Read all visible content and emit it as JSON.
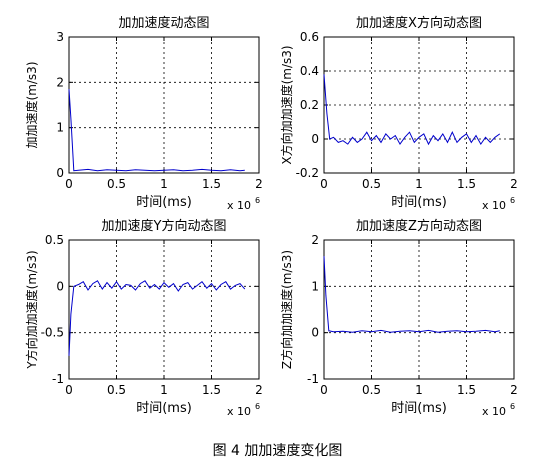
{
  "figure_caption": "图 4  加加速度变化图",
  "colors": {
    "line": "#0000cc",
    "axis": "#000000",
    "background": "#ffffff"
  },
  "chart_data": [
    {
      "type": "line",
      "title": "加加速度动态图",
      "xlabel": "时间(ms)",
      "ylabel": "加加速度(m/s3)",
      "x_exponent_label": "x 10",
      "x_exponent_power": "6",
      "xlim": [
        0,
        2
      ],
      "ylim": [
        0,
        3
      ],
      "xticks": [
        "0",
        "0.5",
        "1",
        "1.5",
        "2"
      ],
      "yticks": [
        "0",
        "1",
        "2",
        "3"
      ],
      "grid": true,
      "series": [
        {
          "x": [
            0,
            0.02,
            0.05,
            0.1,
            0.2,
            0.3,
            0.4,
            0.5,
            0.6,
            0.7,
            0.8,
            0.9,
            1.0,
            1.1,
            1.2,
            1.3,
            1.4,
            1.5,
            1.6,
            1.7,
            1.8,
            1.85
          ],
          "y": [
            1.85,
            1.2,
            0.05,
            0.06,
            0.08,
            0.05,
            0.07,
            0.06,
            0.05,
            0.07,
            0.06,
            0.05,
            0.06,
            0.07,
            0.05,
            0.06,
            0.08,
            0.06,
            0.05,
            0.07,
            0.05,
            0.06
          ]
        }
      ]
    },
    {
      "type": "line",
      "title": "加加速度X方向动态图",
      "xlabel": "时间(ms)",
      "ylabel": "X方向加加速度(m/s3)",
      "x_exponent_label": "x 10",
      "x_exponent_power": "6",
      "xlim": [
        0,
        2
      ],
      "ylim": [
        -0.2,
        0.6
      ],
      "xticks": [
        "0",
        "0.5",
        "1",
        "1.5",
        "2"
      ],
      "yticks": [
        "-0.2",
        "0",
        "0.2",
        "0.4",
        "0.6"
      ],
      "grid": true,
      "series": [
        {
          "x": [
            0,
            0.03,
            0.06,
            0.1,
            0.15,
            0.2,
            0.25,
            0.3,
            0.35,
            0.4,
            0.45,
            0.5,
            0.55,
            0.6,
            0.65,
            0.7,
            0.75,
            0.8,
            0.85,
            0.9,
            0.95,
            1.0,
            1.05,
            1.1,
            1.15,
            1.2,
            1.25,
            1.3,
            1.35,
            1.4,
            1.45,
            1.5,
            1.55,
            1.6,
            1.65,
            1.7,
            1.75,
            1.8,
            1.85
          ],
          "y": [
            0.38,
            0.15,
            0.0,
            0.01,
            -0.02,
            -0.01,
            -0.03,
            0.01,
            -0.02,
            0.0,
            0.04,
            -0.01,
            0.02,
            -0.02,
            0.03,
            0.0,
            0.02,
            -0.03,
            0.01,
            0.04,
            -0.02,
            0.01,
            0.03,
            -0.03,
            0.02,
            -0.01,
            0.03,
            -0.02,
            0.04,
            -0.02,
            0.01,
            0.03,
            -0.02,
            0.02,
            -0.03,
            0.01,
            -0.02,
            0.01,
            0.03
          ]
        }
      ]
    },
    {
      "type": "line",
      "title": "加加速度Y方向动态图",
      "xlabel": "时间(ms)",
      "ylabel": "Y方向加加速度(m/s3)",
      "x_exponent_label": "x 10",
      "x_exponent_power": "6",
      "xlim": [
        0,
        2
      ],
      "ylim": [
        -1,
        0.5
      ],
      "xticks": [
        "0",
        "0.5",
        "1",
        "1.5",
        "2"
      ],
      "yticks": [
        "-1",
        "-0.5",
        "0",
        "0.5"
      ],
      "grid": true,
      "series": [
        {
          "x": [
            0,
            0.02,
            0.05,
            0.1,
            0.15,
            0.2,
            0.25,
            0.3,
            0.35,
            0.4,
            0.45,
            0.5,
            0.55,
            0.6,
            0.65,
            0.7,
            0.75,
            0.8,
            0.85,
            0.9,
            0.95,
            1.0,
            1.05,
            1.1,
            1.15,
            1.2,
            1.25,
            1.3,
            1.35,
            1.4,
            1.45,
            1.5,
            1.55,
            1.6,
            1.65,
            1.7,
            1.75,
            1.8,
            1.85
          ],
          "y": [
            -0.75,
            -0.3,
            0.0,
            0.02,
            0.05,
            -0.04,
            0.03,
            0.06,
            -0.03,
            0.04,
            -0.02,
            0.05,
            -0.03,
            0.02,
            0.01,
            -0.04,
            0.03,
            0.06,
            -0.02,
            0.02,
            -0.03,
            0.04,
            -0.01,
            0.03,
            -0.05,
            0.02,
            0.04,
            -0.03,
            0.01,
            0.05,
            -0.02,
            0.03,
            -0.04,
            0.02,
            0.05,
            -0.03,
            0.01,
            0.03,
            -0.03
          ]
        }
      ]
    },
    {
      "type": "line",
      "title": "加加速度Z方向动态图",
      "xlabel": "时间(ms)",
      "ylabel": "Z方向加加速度(m/s3)",
      "x_exponent_label": "x 10",
      "x_exponent_power": "6",
      "xlim": [
        0,
        2
      ],
      "ylim": [
        -1,
        2
      ],
      "xticks": [
        "0",
        "0.5",
        "1",
        "1.5",
        "2"
      ],
      "yticks": [
        "-1",
        "0",
        "1",
        "2"
      ],
      "grid": true,
      "series": [
        {
          "x": [
            0,
            0.02,
            0.05,
            0.1,
            0.2,
            0.3,
            0.4,
            0.5,
            0.6,
            0.7,
            0.8,
            0.9,
            1.0,
            1.1,
            1.2,
            1.3,
            1.4,
            1.5,
            1.6,
            1.7,
            1.8,
            1.85
          ],
          "y": [
            1.65,
            0.8,
            0.04,
            0.02,
            0.03,
            0.01,
            0.04,
            0.02,
            0.05,
            0.01,
            0.03,
            0.04,
            0.02,
            0.05,
            0.01,
            0.03,
            0.04,
            0.02,
            0.03,
            0.05,
            0.02,
            0.04
          ]
        }
      ]
    }
  ]
}
